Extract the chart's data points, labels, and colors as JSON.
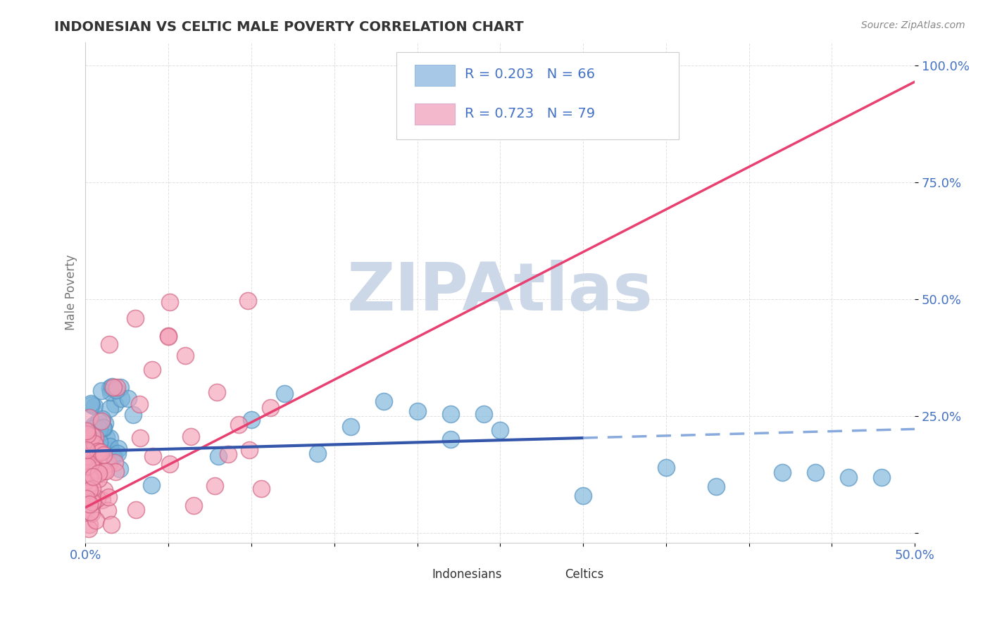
{
  "title": "INDONESIAN VS CELTIC MALE POVERTY CORRELATION CHART",
  "source_text": "Source: ZipAtlas.com",
  "ylabel": "Male Poverty",
  "xlim": [
    0.0,
    0.5
  ],
  "ylim": [
    -0.02,
    1.05
  ],
  "indonesian_color": "#7ab3d9",
  "indonesian_edge_color": "#5090c0",
  "celtic_color": "#f4a0b8",
  "celtic_edge_color": "#d06080",
  "indonesian_line_color": "#3355aa",
  "celtic_line_color": "#e84070",
  "dash_line_color": "#88aadd",
  "watermark_color": "#ccd8e8",
  "background_color": "#ffffff",
  "grid_color": "#cccccc",
  "tick_color": "#4472c4",
  "legend_box_color_indo": "#a8c8e8",
  "legend_box_color_celt": "#f4b8cc",
  "indo_intercept": 0.175,
  "indo_slope": 0.095,
  "celt_intercept": 0.055,
  "celt_slope": 1.82,
  "solid_cutoff": 0.3,
  "seed": 42
}
